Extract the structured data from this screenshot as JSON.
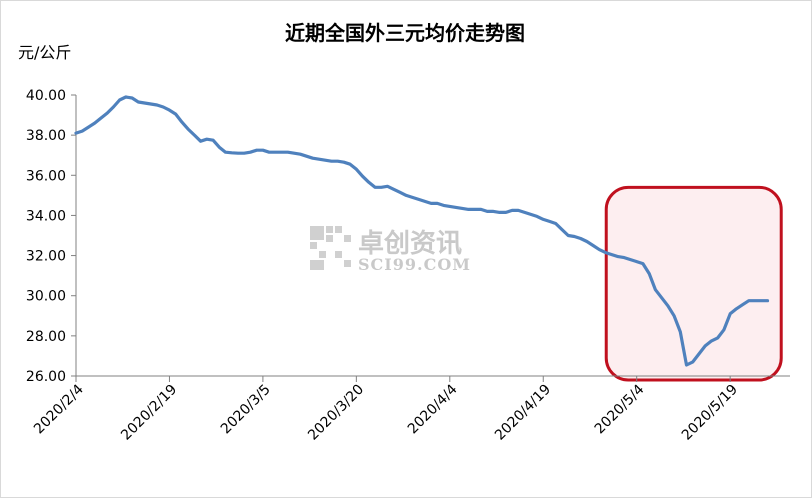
{
  "chart_data": {
    "type": "line",
    "title": "近期全国外三元均价走势图",
    "ylabel": "元/公斤",
    "xlabel": "",
    "ylim": [
      26,
      40
    ],
    "yticks": [
      "26.00",
      "28.00",
      "30.00",
      "32.00",
      "34.00",
      "36.00",
      "38.00",
      "40.00"
    ],
    "xticks": [
      {
        "label": "2020/2/4",
        "day": 0
      },
      {
        "label": "2020/2/19",
        "day": 15
      },
      {
        "label": "2020/3/5",
        "day": 30
      },
      {
        "label": "2020/3/20",
        "day": 45
      },
      {
        "label": "2020/4/4",
        "day": 60
      },
      {
        "label": "2020/4/19",
        "day": 75
      },
      {
        "label": "2020/5/4",
        "day": 90
      },
      {
        "label": "2020/5/19",
        "day": 105
      }
    ],
    "series": [
      {
        "name": "",
        "color": "#4F81BD",
        "points": [
          [
            0,
            38.1
          ],
          [
            1,
            38.2
          ],
          [
            2,
            38.4
          ],
          [
            3,
            38.6
          ],
          [
            4,
            38.85
          ],
          [
            5,
            39.1
          ],
          [
            6,
            39.4
          ],
          [
            7,
            39.75
          ],
          [
            8,
            39.9
          ],
          [
            9,
            39.85
          ],
          [
            10,
            39.65
          ],
          [
            11,
            39.6
          ],
          [
            12,
            39.55
          ],
          [
            13,
            39.5
          ],
          [
            14,
            39.4
          ],
          [
            15,
            39.25
          ],
          [
            16,
            39.05
          ],
          [
            17,
            38.65
          ],
          [
            18,
            38.3
          ],
          [
            19,
            38.0
          ],
          [
            20,
            37.7
          ],
          [
            21,
            37.8
          ],
          [
            22,
            37.75
          ],
          [
            23,
            37.4
          ],
          [
            24,
            37.15
          ],
          [
            25,
            37.12
          ],
          [
            26,
            37.1
          ],
          [
            27,
            37.1
          ],
          [
            28,
            37.15
          ],
          [
            29,
            37.25
          ],
          [
            30,
            37.25
          ],
          [
            31,
            37.15
          ],
          [
            32,
            37.15
          ],
          [
            33,
            37.15
          ],
          [
            34,
            37.15
          ],
          [
            35,
            37.1
          ],
          [
            36,
            37.05
          ],
          [
            37,
            36.95
          ],
          [
            38,
            36.85
          ],
          [
            39,
            36.8
          ],
          [
            40,
            36.75
          ],
          [
            41,
            36.7
          ],
          [
            42,
            36.7
          ],
          [
            43,
            36.65
          ],
          [
            44,
            36.55
          ],
          [
            45,
            36.3
          ],
          [
            46,
            35.95
          ],
          [
            47,
            35.65
          ],
          [
            48,
            35.4
          ],
          [
            49,
            35.4
          ],
          [
            50,
            35.45
          ],
          [
            51,
            35.3
          ],
          [
            52,
            35.15
          ],
          [
            53,
            35.0
          ],
          [
            54,
            34.9
          ],
          [
            55,
            34.8
          ],
          [
            56,
            34.7
          ],
          [
            57,
            34.6
          ],
          [
            58,
            34.6
          ],
          [
            59,
            34.5
          ],
          [
            60,
            34.45
          ],
          [
            61,
            34.4
          ],
          [
            62,
            34.35
          ],
          [
            63,
            34.3
          ],
          [
            64,
            34.3
          ],
          [
            65,
            34.3
          ],
          [
            66,
            34.2
          ],
          [
            67,
            34.2
          ],
          [
            68,
            34.15
          ],
          [
            69,
            34.15
          ],
          [
            70,
            34.25
          ],
          [
            71,
            34.25
          ],
          [
            72,
            34.15
          ],
          [
            73,
            34.05
          ],
          [
            74,
            33.95
          ],
          [
            75,
            33.8
          ],
          [
            76,
            33.7
          ],
          [
            77,
            33.6
          ],
          [
            78,
            33.3
          ],
          [
            79,
            33.0
          ],
          [
            80,
            32.95
          ],
          [
            81,
            32.85
          ],
          [
            82,
            32.7
          ],
          [
            83,
            32.5
          ],
          [
            84,
            32.3
          ],
          [
            85,
            32.15
          ],
          [
            86,
            32.05
          ],
          [
            87,
            31.95
          ],
          [
            88,
            31.9
          ],
          [
            89,
            31.8
          ],
          [
            90,
            31.7
          ],
          [
            91,
            31.6
          ],
          [
            92,
            31.1
          ],
          [
            93,
            30.3
          ],
          [
            94,
            29.9
          ],
          [
            95,
            29.5
          ],
          [
            96,
            29.0
          ],
          [
            97,
            28.2
          ],
          [
            98,
            26.55
          ],
          [
            99,
            26.7
          ],
          [
            100,
            27.1
          ],
          [
            101,
            27.5
          ],
          [
            102,
            27.75
          ],
          [
            103,
            27.9
          ],
          [
            104,
            28.3
          ],
          [
            105,
            29.1
          ],
          [
            106,
            29.35
          ],
          [
            107,
            29.55
          ],
          [
            108,
            29.75
          ],
          [
            109,
            29.75
          ],
          [
            110,
            29.75
          ],
          [
            111,
            29.75
          ]
        ]
      }
    ],
    "highlight": {
      "day_start": 88,
      "day_end": 114,
      "y_min": 25.8,
      "y_max": 35.4,
      "color": "#C0101E",
      "fill": "#FDEEF0"
    },
    "grid": false,
    "legend": "none"
  },
  "watermark": {
    "cn": "卓创资讯",
    "en": "SCI99.COM"
  }
}
